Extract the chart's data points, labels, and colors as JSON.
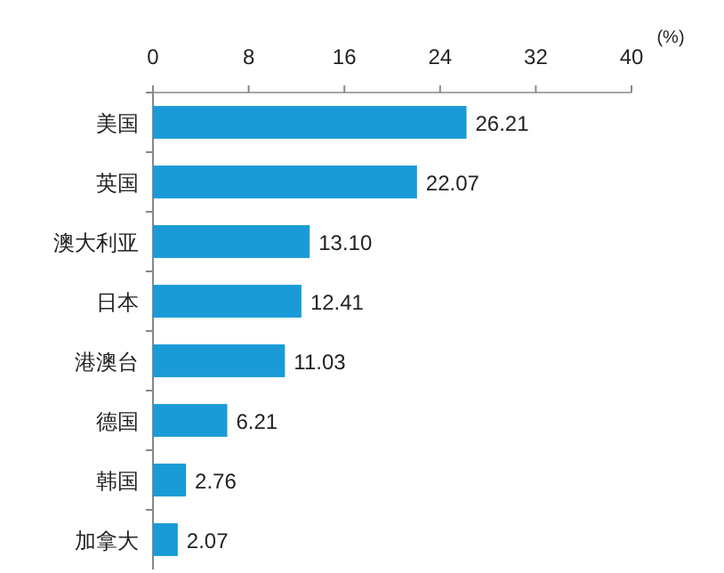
{
  "chart_data": {
    "type": "bar",
    "orientation": "horizontal",
    "xlabel": "(%)",
    "categories": [
      "美国",
      "英国",
      "澳大利亚",
      "日本",
      "港澳台",
      "德国",
      "韩国",
      "加拿大"
    ],
    "values": [
      26.21,
      22.07,
      13.1,
      12.41,
      11.03,
      6.21,
      2.76,
      2.07
    ],
    "value_labels": [
      "26.21",
      "22.07",
      "13.10",
      "12.41",
      "11.03",
      "6.21",
      "2.76",
      "2.07"
    ],
    "color": "#1a9bd7",
    "xlim": [
      0,
      40
    ],
    "xticks": [
      0,
      8,
      16,
      24,
      32,
      40
    ],
    "grid": false
  }
}
